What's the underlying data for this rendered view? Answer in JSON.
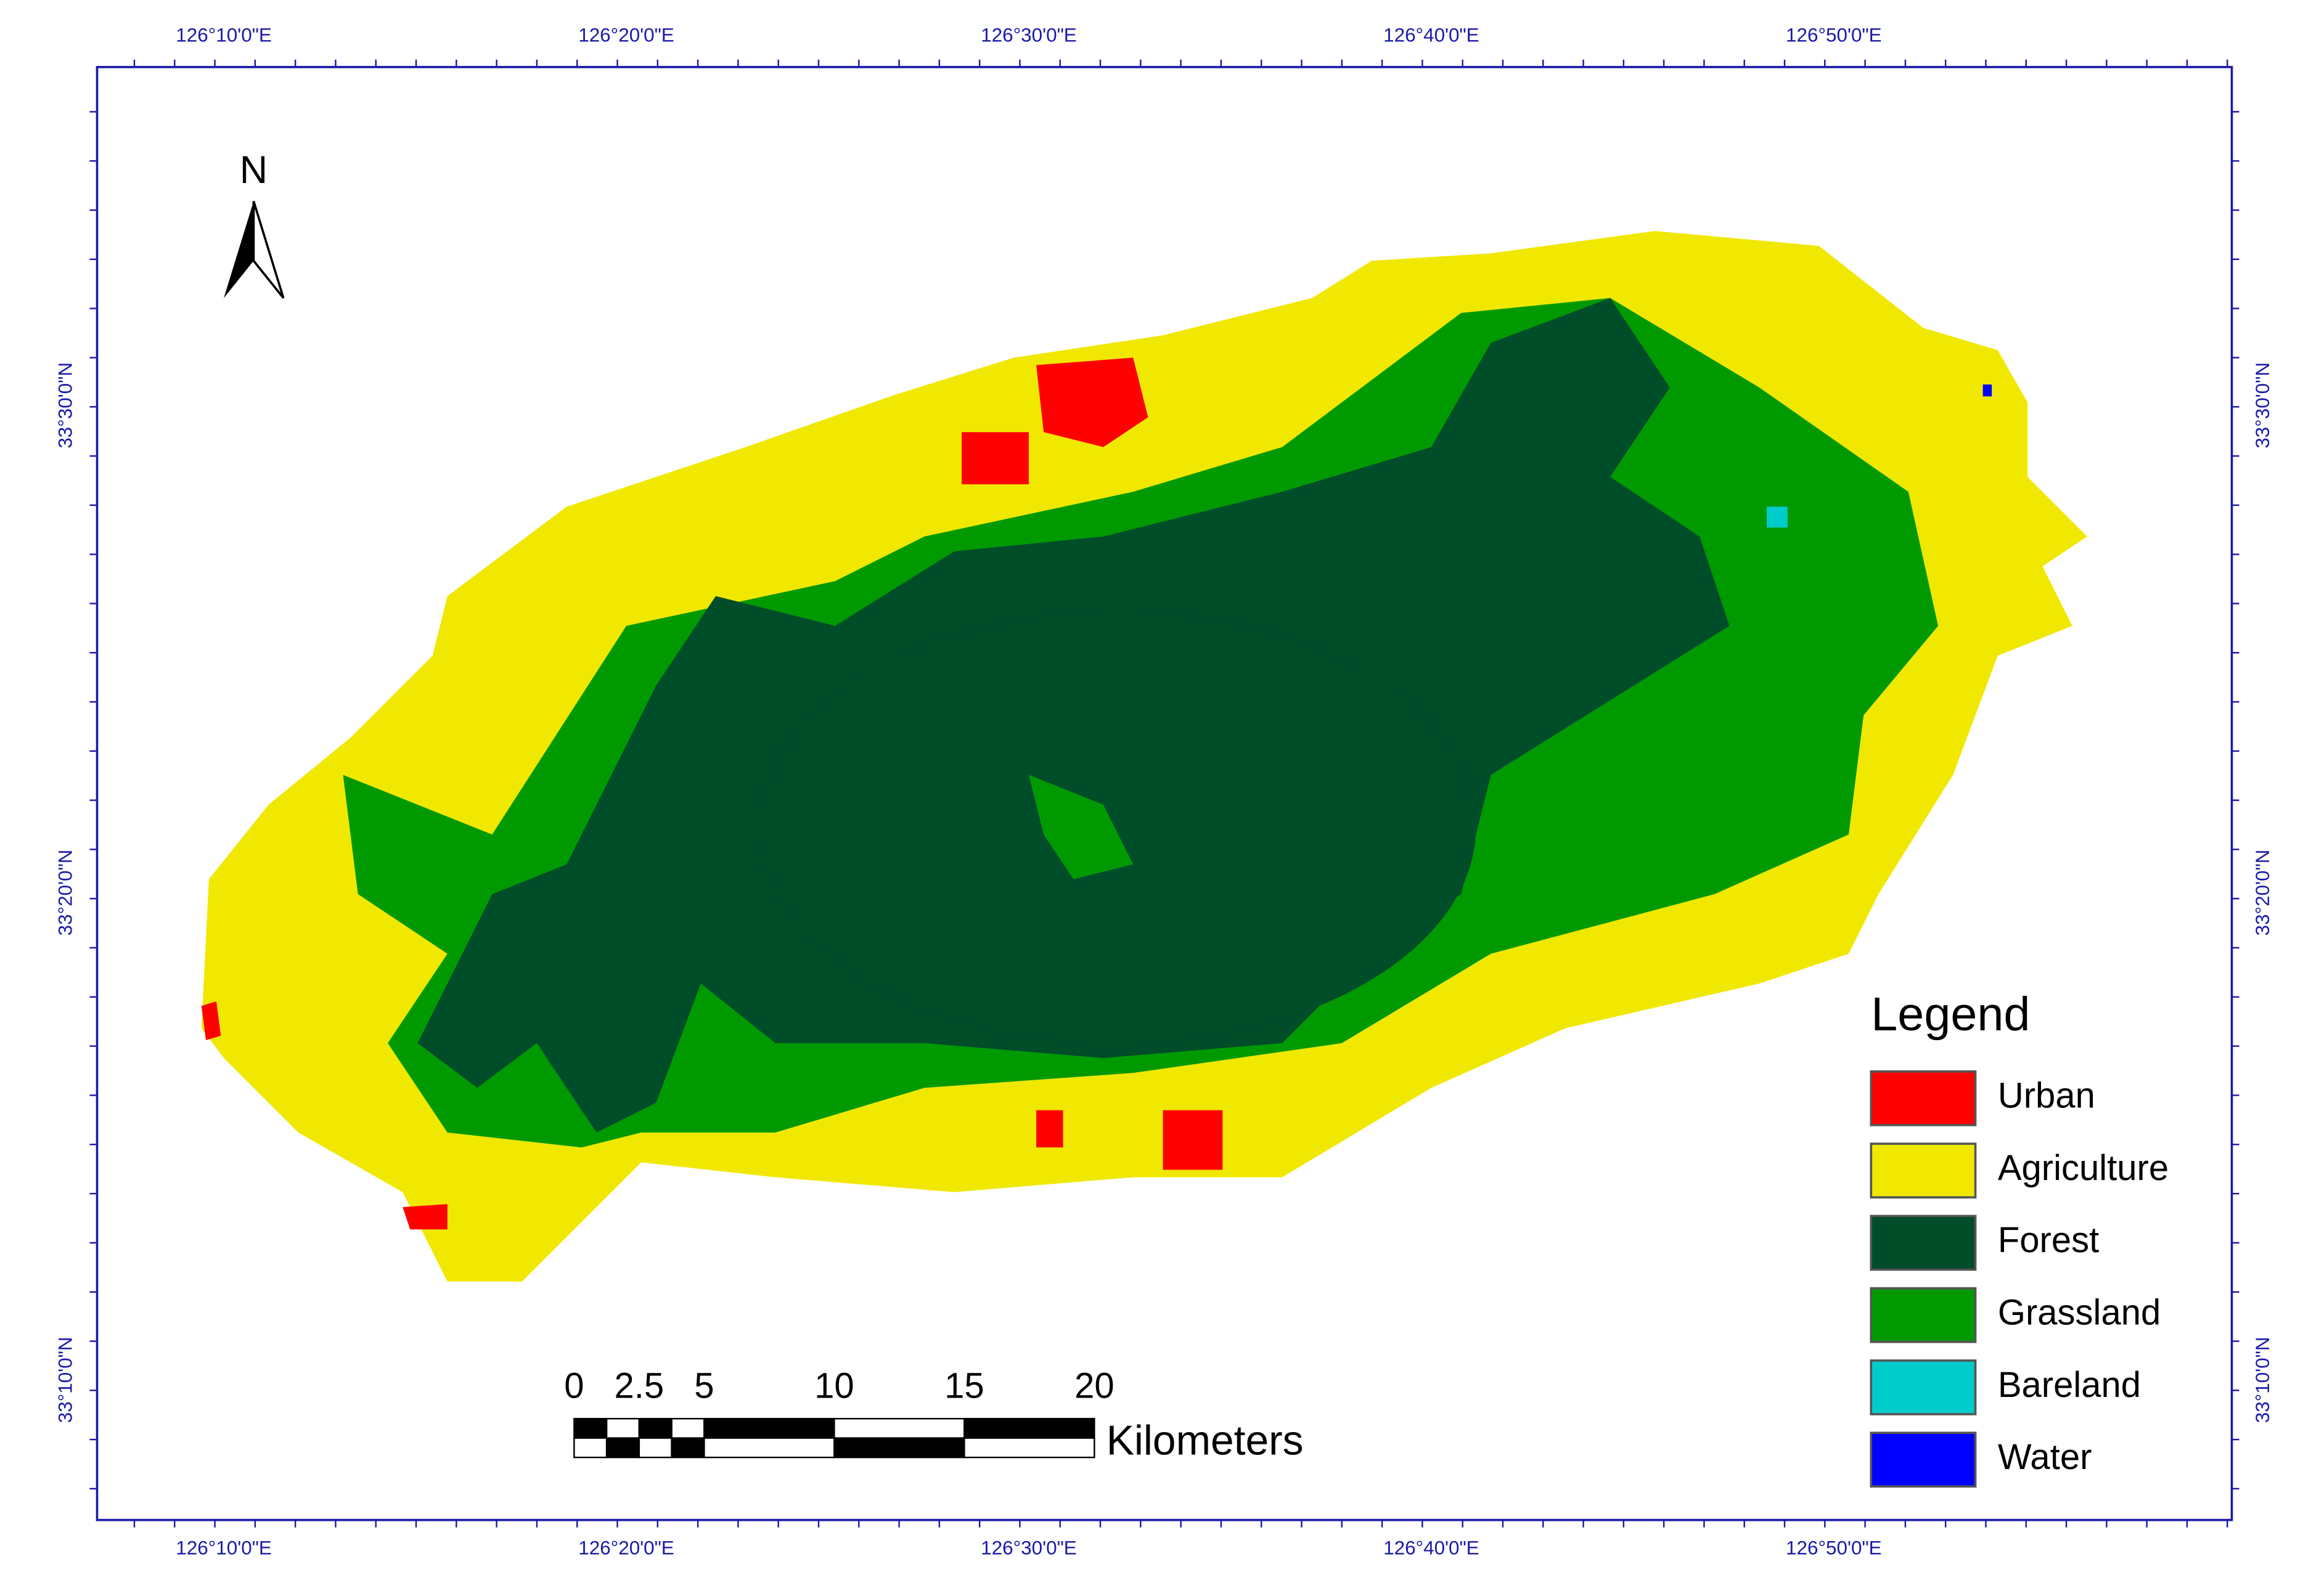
{
  "map": {
    "graticule": {
      "longitude_labels": [
        "126°10'0\"E",
        "126°20'0\"E",
        "126°30'0\"E",
        "126°40'0\"E",
        "126°50'0\"E"
      ],
      "latitude_labels": [
        "33°30'0\"N",
        "33°20'0\"N",
        "33°10'0\"N"
      ]
    },
    "north_arrow": "N",
    "scale_bar": {
      "ticks": [
        0,
        2.5,
        5,
        10,
        15,
        20
      ],
      "unit": "Kilometers"
    },
    "legend": {
      "title": "Legend",
      "items": [
        {
          "label": "Urban",
          "color": "#ff0000"
        },
        {
          "label": "Agriculture",
          "color": "#f0e800"
        },
        {
          "label": "Forest",
          "color": "#004d2a"
        },
        {
          "label": "Grassland",
          "color": "#009a00"
        },
        {
          "label": "Bareland",
          "color": "#00cccc"
        },
        {
          "label": "Water",
          "color": "#0000ff"
        }
      ]
    }
  }
}
